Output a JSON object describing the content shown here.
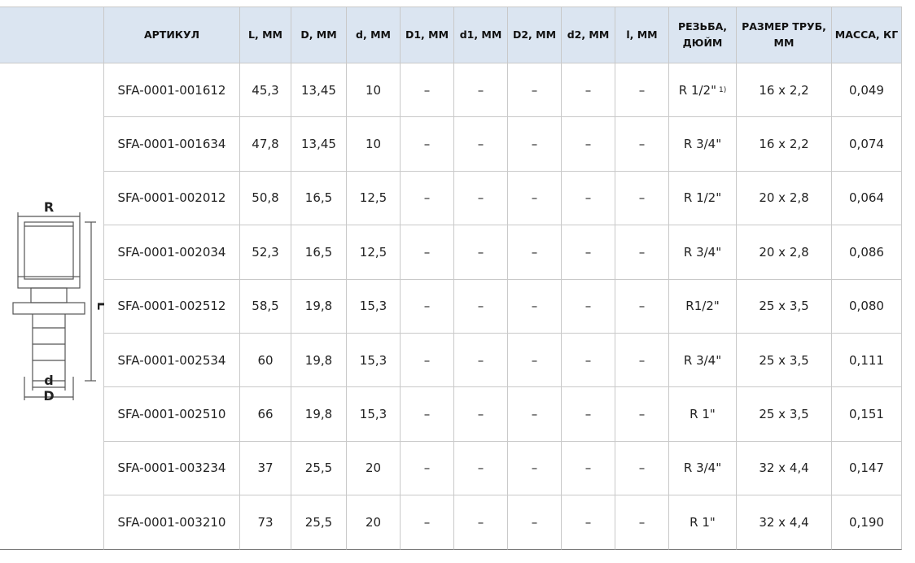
{
  "table": {
    "headers": [
      "АРТИКУЛ",
      "L, ММ",
      "D, ММ",
      "d, ММ",
      "D1, ММ",
      "d1, ММ",
      "D2, ММ",
      "d2, ММ",
      "l, ММ",
      "РЕЗЬБА, ДЮЙМ",
      "РАЗМЕР ТРУБ, ММ",
      "МАССА, КГ"
    ],
    "rows": [
      {
        "article": "SFA-0001-001612",
        "L": "45,3",
        "D": "13,45",
        "d": "10",
        "D1": "–",
        "d1": "–",
        "D2": "–",
        "d2": "–",
        "l": "–",
        "thread": "R 1/2\"",
        "thread_note": "1)",
        "pipe": "16 x 2,2",
        "mass": "0,049"
      },
      {
        "article": "SFA-0001-001634",
        "L": "47,8",
        "D": "13,45",
        "d": "10",
        "D1": "–",
        "d1": "–",
        "D2": "–",
        "d2": "–",
        "l": "–",
        "thread": "R 3/4\"",
        "pipe": "16 x 2,2",
        "mass": "0,074"
      },
      {
        "article": "SFA-0001-002012",
        "L": "50,8",
        "D": "16,5",
        "d": "12,5",
        "D1": "–",
        "d1": "–",
        "D2": "–",
        "d2": "–",
        "l": "–",
        "thread": "R 1/2\"",
        "pipe": "20 x 2,8",
        "mass": "0,064"
      },
      {
        "article": "SFA-0001-002034",
        "L": "52,3",
        "D": "16,5",
        "d": "12,5",
        "D1": "–",
        "d1": "–",
        "D2": "–",
        "d2": "–",
        "l": "–",
        "thread": "R 3/4\"",
        "pipe": "20 x 2,8",
        "mass": "0,086"
      },
      {
        "article": "SFA-0001-002512",
        "L": "58,5",
        "D": "19,8",
        "d": "15,3",
        "D1": "–",
        "d1": "–",
        "D2": "–",
        "d2": "–",
        "l": "–",
        "thread": "R1/2\"",
        "pipe": "25 x 3,5",
        "mass": "0,080"
      },
      {
        "article": "SFA-0001-002534",
        "L": "60",
        "D": "19,8",
        "d": "15,3",
        "D1": "–",
        "d1": "–",
        "D2": "–",
        "d2": "–",
        "l": "–",
        "thread": "R 3/4\"",
        "pipe": "25 x 3,5",
        "mass": "0,111"
      },
      {
        "article": "SFA-0001-002510",
        "L": "66",
        "D": "19,8",
        "d": "15,3",
        "D1": "–",
        "d1": "–",
        "D2": "–",
        "d2": "–",
        "l": "–",
        "thread": "R 1\"",
        "pipe": "25 x 3,5",
        "mass": "0,151"
      },
      {
        "article": "SFA-0001-003234",
        "L": "37",
        "D": "25,5",
        "d": "20",
        "D1": "–",
        "d1": "–",
        "D2": "–",
        "d2": "–",
        "l": "–",
        "thread": "R 3/4\"",
        "pipe": "32 x 4,4",
        "mass": "0,147"
      },
      {
        "article": "SFA-0001-003210",
        "L": "73",
        "D": "25,5",
        "d": "20",
        "D1": "–",
        "d1": "–",
        "D2": "–",
        "d2": "–",
        "l": "–",
        "thread": "R 1\"",
        "pipe": "32 x 4,4",
        "mass": "0,190"
      }
    ]
  },
  "drawing": {
    "labels": {
      "R": "R",
      "L": "L",
      "d": "d",
      "D": "D"
    }
  }
}
